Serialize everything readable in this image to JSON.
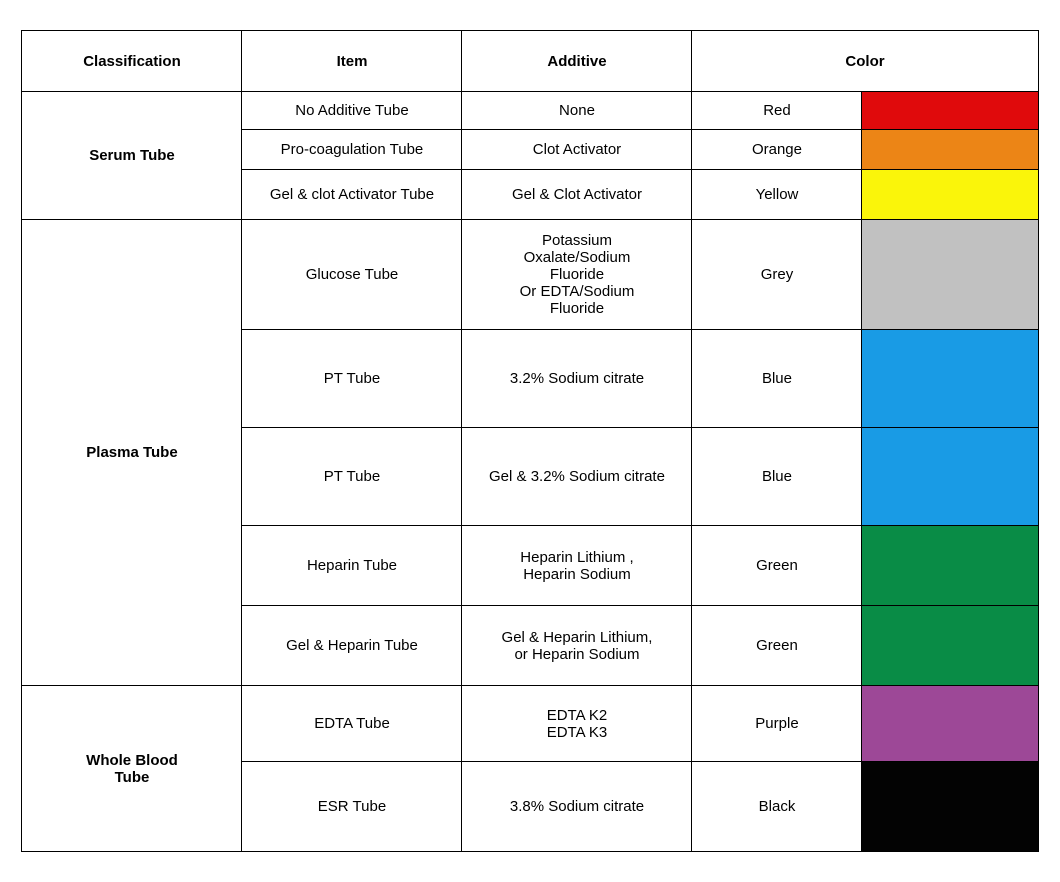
{
  "table": {
    "headers": {
      "classification": "Classification",
      "item": "Item",
      "additive": "Additive",
      "color": "Color"
    },
    "border_color": "#000000",
    "text_color": "#000000",
    "header_fontsize": 15,
    "cell_fontsize": 15,
    "row_heights": {
      "header": 44,
      "serum1": 38,
      "serum2": 40,
      "serum3": 50,
      "plasma1": 110,
      "plasma2": 98,
      "plasma3": 98,
      "plasma4": 80,
      "plasma5": 80,
      "whole1": 76,
      "whole2": 90
    },
    "groups": [
      {
        "classification": "Serum Tube",
        "rows": [
          {
            "item": "No Additive Tube",
            "additive": "None",
            "color_name": "Red",
            "swatch": "#e00a0c"
          },
          {
            "item": "Pro-coagulation Tube",
            "additive": "Clot  Activator",
            "color_name": "Orange",
            "swatch": "#ec8516"
          },
          {
            "item": "Gel & clot Activator Tube",
            "additive": "Gel & Clot  Activator",
            "color_name": "Yellow",
            "swatch": "#faf50a"
          }
        ]
      },
      {
        "classification": "Plasma Tube",
        "rows": [
          {
            "item": "Glucose Tube",
            "additive": "Potassium\nOxalate/Sodium\nFluoride\nOr EDTA/Sodium\nFluoride",
            "color_name": "Grey",
            "swatch": "#c1c1c1"
          },
          {
            "item": "PT Tube",
            "additive": "3.2% Sodium citrate",
            "color_name": "Blue",
            "swatch": "#199be5"
          },
          {
            "item": "PT Tube",
            "additive": "Gel & 3.2% Sodium citrate",
            "color_name": "Blue",
            "swatch": "#199be5"
          },
          {
            "item": "Heparin  Tube",
            "additive": "Heparin Lithium ,\nHeparin Sodium",
            "color_name": "Green",
            "swatch": "#098c46"
          },
          {
            "item": "Gel & Heparin  Tube",
            "additive": "Gel &  Heparin Lithium,\nor Heparin Sodium",
            "color_name": "Green",
            "swatch": "#098c46"
          }
        ]
      },
      {
        "classification": "Whole Blood\nTube",
        "rows": [
          {
            "item": "EDTA Tube",
            "additive": "EDTA  K2\nEDTA  K3",
            "color_name": "Purple",
            "swatch": "#9d4897"
          },
          {
            "item": "ESR Tube",
            "additive": "3.8% Sodium citrate",
            "color_name": "Black",
            "swatch": "#030303"
          }
        ]
      }
    ]
  }
}
